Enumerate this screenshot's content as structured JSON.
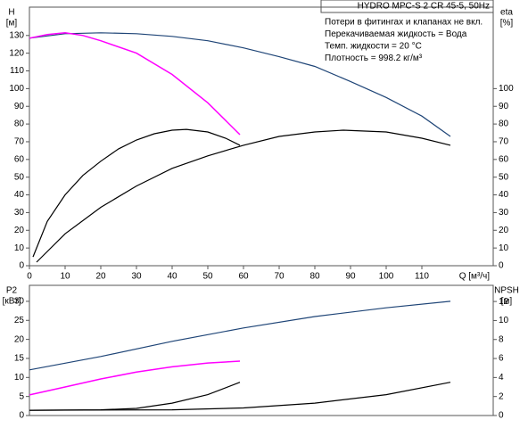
{
  "chart_data": [
    {
      "type": "line",
      "title": "HYDRO MPC-S 2 CR 45-5, 50Hz",
      "notes": [
        "Потери в фитингах и клапанах не вкл.",
        "Перекачиваемая жидкость = Вода",
        "Темп. жидкости = 20 °C",
        "Плотность = 998.2 кг/м³"
      ],
      "ylabel": [
        "H",
        "[м]"
      ],
      "y2label": [
        "eta",
        "[%]"
      ],
      "xlabel": "Q [м³/ч]",
      "xlim": [
        0,
        130
      ],
      "xticks": [
        0,
        10,
        20,
        30,
        40,
        50,
        60,
        70,
        80,
        90,
        100,
        110
      ],
      "ylim": [
        0,
        146
      ],
      "yticks": [
        0,
        10,
        20,
        30,
        40,
        50,
        60,
        70,
        80,
        90,
        100,
        110,
        120,
        130
      ],
      "y2lim": [
        0,
        146
      ],
      "y2ticks": [
        0,
        10,
        20,
        30,
        40,
        50,
        60,
        70,
        80,
        90,
        100
      ],
      "series": [
        {
          "color": "#1f4577",
          "width": 1.2,
          "x": [
            0,
            10,
            20,
            30,
            40,
            50,
            60,
            70,
            80,
            90,
            100,
            110,
            118
          ],
          "values": [
            128.5,
            131,
            131.5,
            131,
            129.5,
            127,
            123,
            118,
            112.5,
            104,
            95,
            84.5,
            73
          ]
        },
        {
          "color": "#ff00ff",
          "width": 1.5,
          "x": [
            0,
            5,
            10,
            15,
            20,
            30,
            40,
            50,
            59
          ],
          "values": [
            128.5,
            130.5,
            131.5,
            130,
            127,
            120,
            108,
            92,
            74
          ]
        },
        {
          "color": "#000000",
          "width": 1.2,
          "axis": "y2",
          "x": [
            1,
            5,
            10,
            15,
            20,
            25,
            30,
            35,
            40,
            44,
            50,
            55,
            59
          ],
          "values": [
            5,
            25,
            40,
            51,
            59,
            66,
            71,
            74.5,
            76.5,
            77,
            75.5,
            72,
            68
          ]
        },
        {
          "color": "#000000",
          "width": 1.2,
          "axis": "y2",
          "x": [
            2,
            10,
            20,
            30,
            40,
            50,
            60,
            70,
            80,
            88,
            100,
            110,
            118
          ],
          "values": [
            2,
            18,
            33,
            45,
            55,
            62,
            68,
            73,
            75.5,
            76.5,
            75.5,
            72,
            68
          ]
        }
      ]
    },
    {
      "type": "line",
      "ylabel": [
        "P2",
        "[кВт]"
      ],
      "y2label": [
        "NPSH",
        "[м]"
      ],
      "xlim": [
        0,
        130
      ],
      "ylim": [
        0,
        34.2
      ],
      "yticks": [
        0,
        5,
        10,
        15,
        20,
        25,
        30
      ],
      "y2lim": [
        0,
        13.7
      ],
      "y2ticks": [
        0,
        2,
        4,
        6,
        8,
        10,
        12
      ],
      "series": [
        {
          "color": "#1f4577",
          "width": 1.2,
          "x": [
            0,
            20,
            40,
            60,
            80,
            100,
            118
          ],
          "values": [
            12,
            15.5,
            19.5,
            23,
            26,
            28.3,
            30
          ]
        },
        {
          "color": "#ff00ff",
          "width": 1.5,
          "x": [
            0,
            10,
            20,
            30,
            40,
            50,
            59
          ],
          "values": [
            5.4,
            7.5,
            9.6,
            11.4,
            12.8,
            13.8,
            14.3
          ]
        },
        {
          "color": "#000000",
          "width": 1.2,
          "axis": "y2",
          "x": [
            0,
            20,
            30,
            40,
            50,
            59
          ],
          "values": [
            0.55,
            0.6,
            0.75,
            1.3,
            2.2,
            3.5
          ]
        },
        {
          "color": "#000000",
          "width": 1.2,
          "axis": "y2",
          "x": [
            0,
            40,
            60,
            80,
            100,
            118
          ],
          "values": [
            0.55,
            0.6,
            0.8,
            1.3,
            2.2,
            3.5
          ]
        }
      ]
    }
  ]
}
